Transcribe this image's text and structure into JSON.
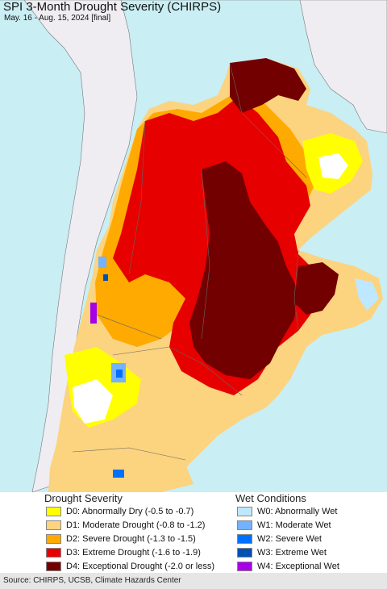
{
  "map": {
    "title": "SPI 3-Month Drought Severity (CHIRPS)",
    "subtitle": "May. 16 - Aug. 15, 2024 [final]",
    "colors": {
      "ocean": "#c9eef4",
      "land_nodata": "#efedf1",
      "D0": "#ffff00",
      "D1": "#fcd37f",
      "D2": "#ffaa00",
      "D3": "#e60000",
      "D4": "#730000",
      "W0": "#bee8ff",
      "W1": "#73b2ff",
      "W2": "#0070ff",
      "W3": "#0050b4",
      "W4": "#a800e6"
    }
  },
  "legend": {
    "drought_heading": "Drought Severity",
    "wet_heading": "Wet Conditions",
    "drought_items": [
      {
        "code": "D0",
        "label": "D0: Abnormally Dry (-0.5 to -0.7)",
        "color": "#ffff00"
      },
      {
        "code": "D1",
        "label": "D1: Moderate Drought (-0.8 to -1.2)",
        "color": "#fcd37f"
      },
      {
        "code": "D2",
        "label": "D2: Severe Drought (-1.3 to -1.5)",
        "color": "#ffaa00"
      },
      {
        "code": "D3",
        "label": "D3: Extreme Drought (-1.6 to -1.9)",
        "color": "#e60000"
      },
      {
        "code": "D4",
        "label": "D4: Exceptional Drought (-2.0 or less)",
        "color": "#730000"
      }
    ],
    "wet_items": [
      {
        "code": "W0",
        "label": "W0: Abnormally Wet",
        "color": "#bee8ff"
      },
      {
        "code": "W1",
        "label": "W1: Moderate Wet",
        "color": "#73b2ff"
      },
      {
        "code": "W2",
        "label": "W2: Severe Wet",
        "color": "#0070ff"
      },
      {
        "code": "W3",
        "label": "W3: Extreme Wet",
        "color": "#0050b4"
      },
      {
        "code": "W4",
        "label": "W4: Exceptional Wet",
        "color": "#a800e6"
      }
    ]
  },
  "footer": {
    "source": "Source: CHIRPS, UCSB, Climate Hazards Center"
  }
}
